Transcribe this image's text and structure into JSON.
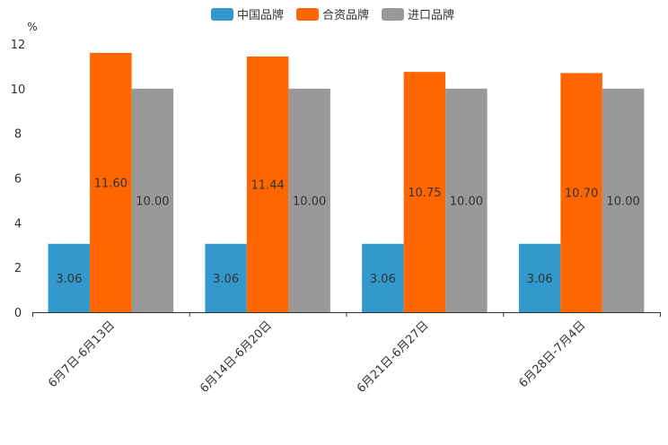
{
  "chart_data": {
    "type": "bar",
    "title": "",
    "unit": "%",
    "categories": [
      "6月7日-6月13日",
      "6月14日-6月20日",
      "6月21日-6月27日",
      "6月28日-7月4日"
    ],
    "series": [
      {
        "name": "中国品牌",
        "color": "#3399cc",
        "values": [
          3.06,
          3.06,
          3.06,
          3.06
        ],
        "labels": [
          "3.06",
          "3.06",
          "3.06",
          "3.06"
        ]
      },
      {
        "name": "合资品牌",
        "color": "#ff6600",
        "values": [
          11.6,
          11.44,
          10.75,
          10.7
        ],
        "labels": [
          "11.60",
          "11.44",
          "10.75",
          "10.70"
        ]
      },
      {
        "name": "进口品牌",
        "color": "#999999",
        "values": [
          10.0,
          10.0,
          10.0,
          10.0
        ],
        "labels": [
          "10.00",
          "10.00",
          "10.00",
          "10.00"
        ]
      }
    ],
    "y_ticks": [
      "0",
      "2",
      "4",
      "6",
      "8",
      "10",
      "12"
    ],
    "ylim": [
      0,
      12
    ],
    "legend_position": "top-center",
    "grid": false
  }
}
